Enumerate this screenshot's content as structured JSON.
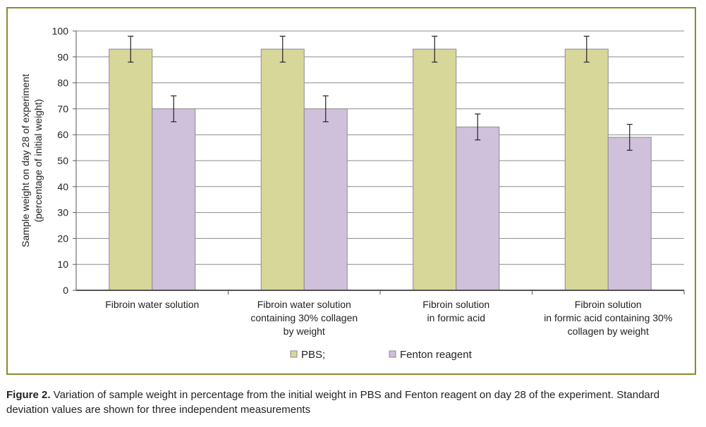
{
  "chart_data": {
    "type": "bar",
    "categories": [
      [
        "Fibroin water solution"
      ],
      [
        "Fibroin water solution",
        "containing 30% collagen",
        "by weight"
      ],
      [
        "Fibroin solution",
        "in formic acid"
      ],
      [
        "Fibroin solution",
        "in formic acid containing 30%",
        "collagen by weight"
      ]
    ],
    "series": [
      {
        "name": "PBS;",
        "values": [
          93,
          93,
          93,
          93
        ],
        "errors": [
          5,
          5,
          5,
          5
        ],
        "color": "#d7d79a"
      },
      {
        "name": "Fenton reagent",
        "values": [
          70,
          70,
          63,
          59
        ],
        "errors": [
          5,
          5,
          5,
          5
        ],
        "color": "#cfc1dc"
      }
    ],
    "ylabel_lines": [
      "Sample weight on day 28 of experiment",
      "(percentage of initial weight)"
    ],
    "ylim": [
      0,
      100
    ],
    "yticks": [
      0,
      10,
      20,
      30,
      40,
      50,
      60,
      70,
      80,
      90,
      100
    ],
    "grid": true,
    "legend": "bottom",
    "border_color": "#8b8a2c"
  },
  "caption": {
    "label": "Figure 2.",
    "text": " Variation of sample weight in percentage from the initial weight in PBS and Fenton reagent on day 28 of the experiment. Standard deviation values are shown for three independent measurements"
  }
}
